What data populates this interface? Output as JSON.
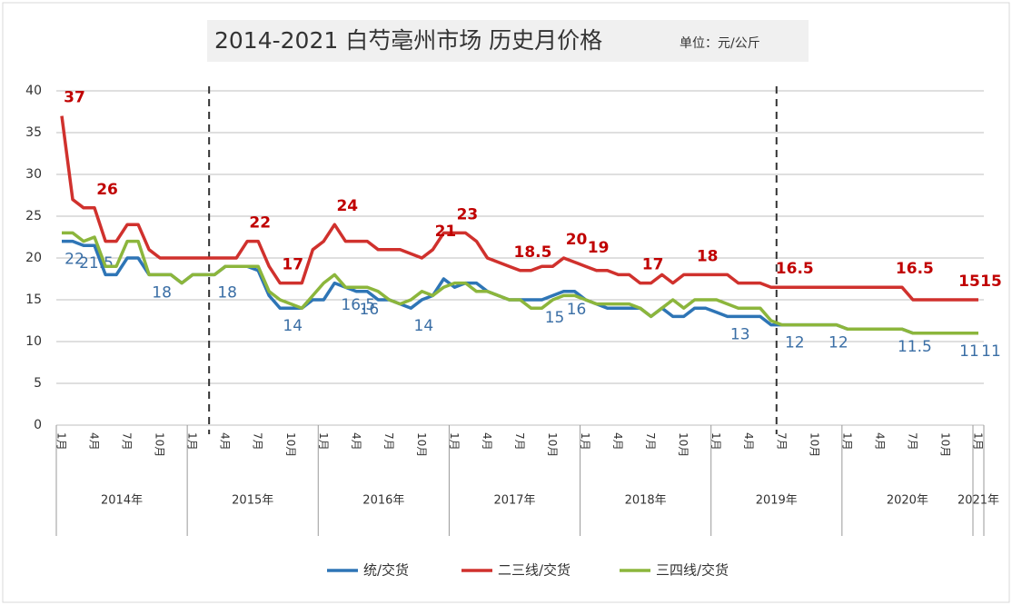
{
  "chart_data": {
    "type": "line",
    "title": "2014-2021 白芍亳州市场 历史月价格",
    "subtitle": "单位：元/公斤",
    "categories": [
      "1月",
      null,
      null,
      "4月",
      null,
      null,
      "7月",
      null,
      null,
      "10月",
      null,
      null,
      "1月",
      null,
      null,
      "4月",
      null,
      null,
      "7月",
      null,
      null,
      "10月",
      null,
      null,
      "1月",
      null,
      null,
      "4月",
      null,
      null,
      "7月",
      null,
      null,
      "10月",
      null,
      null,
      "1月",
      null,
      null,
      "4月",
      null,
      null,
      "7月",
      null,
      null,
      "10月",
      null,
      null,
      "1月",
      null,
      null,
      "4月",
      null,
      null,
      "7月",
      null,
      null,
      "10月",
      null,
      null,
      "1月",
      null,
      null,
      "4月",
      null,
      null,
      "7月",
      null,
      null,
      "10月",
      null,
      null,
      "1月",
      null,
      null,
      "4月",
      null,
      null,
      "7月",
      null,
      null,
      "10月",
      null,
      null,
      "1月"
    ],
    "year_labels": [
      "2014年",
      "2015年",
      "2016年",
      "2017年",
      "2018年",
      "2019年",
      "2020年",
      "2021年"
    ],
    "ylim": [
      0,
      40
    ],
    "yticks": [
      0,
      5,
      10,
      15,
      20,
      25,
      30,
      35,
      40
    ],
    "grid": true,
    "dashed_vlines": [
      14,
      66
    ],
    "series": [
      {
        "name": "统/交货",
        "color": "#2e75b6",
        "label_color": "#3a6ea5",
        "values": [
          22,
          22,
          21.5,
          21.5,
          18,
          18,
          20,
          20,
          18,
          18,
          18,
          17,
          18,
          18,
          18,
          19,
          19,
          19,
          18.5,
          15.5,
          14,
          14,
          14,
          15,
          15,
          17,
          16.5,
          16,
          16,
          15,
          15,
          14.5,
          14,
          15,
          15.5,
          17.5,
          16.5,
          17,
          17,
          16,
          15.5,
          15,
          15,
          15,
          15,
          15.5,
          16,
          16,
          15,
          14.5,
          14,
          14,
          14,
          14,
          13,
          14,
          13,
          13,
          14,
          14,
          13.5,
          13,
          13,
          13,
          13,
          12,
          12,
          12,
          12,
          12,
          12,
          12,
          11.5,
          11.5,
          11.5,
          11.5,
          11.5,
          11.5,
          11,
          11,
          11,
          11,
          11,
          11,
          11
        ],
        "value_labels": [
          "22",
          null,
          "21.5",
          null,
          null,
          null,
          null,
          null,
          "18",
          null,
          null,
          null,
          null,
          null,
          "18",
          null,
          null,
          null,
          null,
          null,
          "14",
          null,
          null,
          null,
          null,
          null,
          "16.5",
          "16",
          null,
          null,
          null,
          null,
          "14",
          null,
          null,
          null,
          null,
          null,
          null,
          null,
          null,
          null,
          null,
          null,
          "15",
          null,
          "16",
          null,
          null,
          null,
          null,
          null,
          null,
          null,
          null,
          null,
          null,
          null,
          null,
          null,
          null,
          "13",
          null,
          null,
          null,
          null,
          "12",
          null,
          null,
          null,
          "12",
          null,
          null,
          null,
          null,
          null,
          null,
          "11.5",
          null,
          null,
          null,
          null,
          "11",
          null,
          "11"
        ]
      },
      {
        "name": "二三线/交货",
        "color": "#d0312d",
        "label_color": "#c00000",
        "values": [
          37,
          27,
          26,
          26,
          22,
          22,
          24,
          24,
          21,
          20,
          20,
          20,
          20,
          20,
          20,
          20,
          20,
          22,
          22,
          19,
          17,
          17,
          17,
          21,
          22,
          24,
          22,
          22,
          22,
          21,
          21,
          21,
          20.5,
          20,
          21,
          23,
          23,
          23,
          22,
          20,
          19.5,
          19,
          18.5,
          18.5,
          19,
          19,
          20,
          19.5,
          19,
          18.5,
          18.5,
          18,
          18,
          17,
          17,
          18,
          17,
          18,
          18,
          18,
          18,
          18,
          17,
          17,
          17,
          16.5,
          16.5,
          16.5,
          16.5,
          16.5,
          16.5,
          16.5,
          16.5,
          16.5,
          16.5,
          16.5,
          16.5,
          16.5,
          15,
          15,
          15,
          15,
          15,
          15,
          15
        ],
        "value_labels": [
          "37",
          null,
          null,
          "26",
          null,
          null,
          null,
          null,
          null,
          null,
          null,
          null,
          null,
          null,
          null,
          null,
          null,
          "22",
          null,
          null,
          "17",
          null,
          null,
          null,
          null,
          "24",
          null,
          null,
          null,
          null,
          null,
          null,
          null,
          null,
          "21",
          null,
          "23",
          null,
          null,
          null,
          null,
          null,
          "18.5",
          null,
          null,
          null,
          "20",
          null,
          "19",
          null,
          null,
          null,
          null,
          "17",
          null,
          null,
          null,
          null,
          "18",
          null,
          null,
          null,
          null,
          null,
          null,
          null,
          "16.5",
          null,
          null,
          null,
          null,
          null,
          null,
          null,
          null,
          null,
          null,
          "16.5",
          null,
          null,
          null,
          null,
          "15",
          null,
          "15"
        ]
      },
      {
        "name": "三四线/交货",
        "color": "#8cb63c",
        "values": [
          23,
          23,
          22,
          22.5,
          19,
          19,
          22,
          22,
          18,
          18,
          18,
          17,
          18,
          18,
          18,
          19,
          19,
          19,
          19,
          16,
          15,
          14.5,
          14,
          15.5,
          17,
          18,
          16.5,
          16.5,
          16.5,
          16,
          15,
          14.5,
          15,
          16,
          15.5,
          16.5,
          17,
          17,
          16,
          16,
          15.5,
          15,
          15,
          14,
          14,
          15,
          15.5,
          15.5,
          15,
          14.5,
          14.5,
          14.5,
          14.5,
          14,
          13,
          14,
          15,
          14,
          15,
          15,
          15,
          14.5,
          14,
          14,
          14,
          12.5,
          12,
          12,
          12,
          12,
          12,
          12,
          11.5,
          11.5,
          11.5,
          11.5,
          11.5,
          11.5,
          11,
          11,
          11,
          11,
          11,
          11,
          11
        ]
      }
    ]
  }
}
